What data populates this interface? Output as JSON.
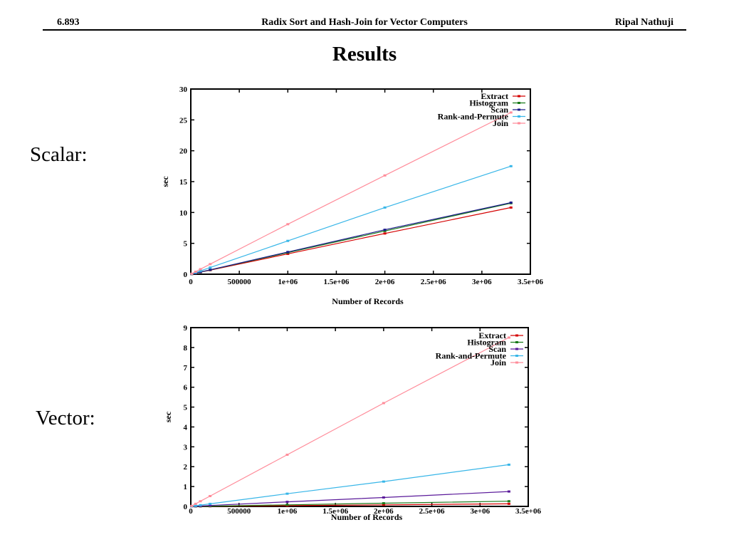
{
  "header": {
    "left": "6.893",
    "center": "Radix Sort and Hash-Join for Vector Computers",
    "right": "Ripal Nathuji"
  },
  "slide": {
    "title": "Results",
    "scalar_label": "Scalar:",
    "vector_label": "Vector:"
  },
  "chart_data": [
    {
      "type": "line",
      "xlabel": "Number of Records",
      "ylabel": "sec",
      "xlim": [
        0,
        3500000
      ],
      "ylim": [
        0,
        30
      ],
      "xticks": [
        0,
        500000,
        1000000,
        1500000,
        2000000,
        2500000,
        3000000,
        3500000
      ],
      "xtick_labels": [
        "0",
        "500000",
        "1e+06",
        "1.5e+06",
        "2e+06",
        "2.5e+06",
        "3e+06",
        "3.5e+06"
      ],
      "yticks": [
        0,
        5,
        10,
        15,
        20,
        25,
        30
      ],
      "ytick_labels": [
        "0",
        "5",
        "10",
        "15",
        "20",
        "25",
        "30"
      ],
      "legend_position": "top-right",
      "x": [
        10000,
        50000,
        100000,
        200000,
        1000000,
        2000000,
        3300000
      ],
      "series": [
        {
          "name": "Extract",
          "color": "#d40000",
          "values": [
            0.03,
            0.16,
            0.33,
            0.66,
            3.3,
            6.6,
            10.8
          ]
        },
        {
          "name": "Histogram",
          "color": "#1a7a1a",
          "values": [
            0.035,
            0.18,
            0.35,
            0.7,
            3.5,
            7.0,
            11.5
          ]
        },
        {
          "name": "Scan",
          "color": "#1c1c8a",
          "values": [
            0.035,
            0.18,
            0.36,
            0.72,
            3.6,
            7.2,
            11.6
          ]
        },
        {
          "name": "Rank-and-Permute",
          "color": "#38b6e8",
          "values": [
            0.05,
            0.27,
            0.54,
            1.08,
            5.4,
            10.8,
            17.5
          ]
        },
        {
          "name": "Join",
          "color": "#ff8c9a",
          "values": [
            0.08,
            0.41,
            0.82,
            1.64,
            8.1,
            16.0,
            26.2
          ]
        }
      ]
    },
    {
      "type": "line",
      "xlabel": "Number of Records",
      "ylabel": "sec",
      "xlim": [
        0,
        3500000
      ],
      "ylim": [
        0,
        9
      ],
      "xticks": [
        0,
        500000,
        1000000,
        1500000,
        2000000,
        2500000,
        3000000,
        3500000
      ],
      "xtick_labels": [
        "0",
        "500000",
        "1e+06",
        "1.5e+06",
        "2e+06",
        "2.5e+06",
        "3e+06",
        "3.5e+06"
      ],
      "yticks": [
        0,
        1,
        2,
        3,
        4,
        5,
        6,
        7,
        8,
        9
      ],
      "ytick_labels": [
        "0",
        "1",
        "2",
        "3",
        "4",
        "5",
        "6",
        "7",
        "8",
        "9"
      ],
      "legend_position": "top-right",
      "x": [
        10000,
        50000,
        100000,
        200000,
        1000000,
        2000000,
        3300000
      ],
      "series": [
        {
          "name": "Extract",
          "color": "#d40000",
          "values": [
            0.0,
            0.002,
            0.004,
            0.008,
            0.04,
            0.08,
            0.13
          ]
        },
        {
          "name": "Histogram",
          "color": "#1a7a1a",
          "values": [
            0.001,
            0.004,
            0.008,
            0.016,
            0.08,
            0.16,
            0.26
          ]
        },
        {
          "name": "Scan",
          "color": "#5a1a9a",
          "values": [
            0.002,
            0.011,
            0.023,
            0.046,
            0.23,
            0.45,
            0.75
          ]
        },
        {
          "name": "Rank-and-Permute",
          "color": "#38b6e8",
          "values": [
            0.006,
            0.032,
            0.064,
            0.128,
            0.64,
            1.25,
            2.1
          ]
        },
        {
          "name": "Join",
          "color": "#ff8c9a",
          "values": [
            0.026,
            0.13,
            0.26,
            0.52,
            2.6,
            5.2,
            8.5
          ]
        }
      ]
    }
  ]
}
